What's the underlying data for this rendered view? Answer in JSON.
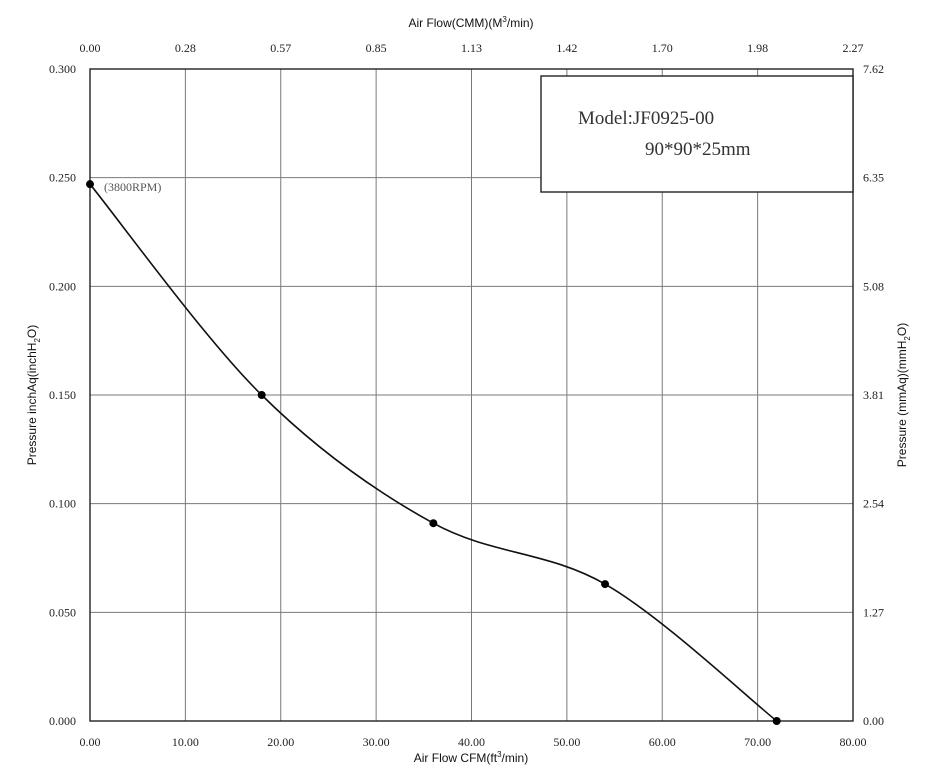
{
  "chart_data": {
    "type": "line",
    "top_xlabel_parts": [
      "Air Flow(CMM)(M",
      "3",
      "/min)"
    ],
    "bottom_xlabel_parts": [
      "Air Flow  CFM(ft",
      "3",
      "/min)"
    ],
    "left_ylabel_parts": [
      "Pressure inchAq(inchH",
      "2",
      "O)"
    ],
    "right_ylabel_parts": [
      "Pressure (mmAq)(mmH",
      "2",
      "O)"
    ],
    "x_ticks": [
      "0.00",
      "10.00",
      "20.00",
      "30.00",
      "40.00",
      "50.00",
      "60.00",
      "70.00",
      "80.00"
    ],
    "top_x_ticks": [
      "0.00",
      "0.28",
      "0.57",
      "0.85",
      "1.13",
      "1.42",
      "1.70",
      "1.98",
      "2.27"
    ],
    "y_ticks": [
      "0.000",
      "0.050",
      "0.100",
      "0.150",
      "0.200",
      "0.250",
      "0.300"
    ],
    "right_y_ticks": [
      "0.00",
      "1.27",
      "2.54",
      "3.81",
      "5.08",
      "6.35",
      "7.62"
    ],
    "xlim": [
      0,
      80
    ],
    "ylim": [
      0,
      0.3
    ],
    "grid": true,
    "series": [
      {
        "x": [
          0,
          18,
          36,
          54,
          72
        ],
        "y": [
          0.247,
          0.15,
          0.091,
          0.063,
          0.0
        ]
      }
    ],
    "annotations": {
      "rpm_label": "(3800RPM)",
      "model_line1": "Model:JF0925-00",
      "model_line2": "90*90*25mm"
    }
  }
}
